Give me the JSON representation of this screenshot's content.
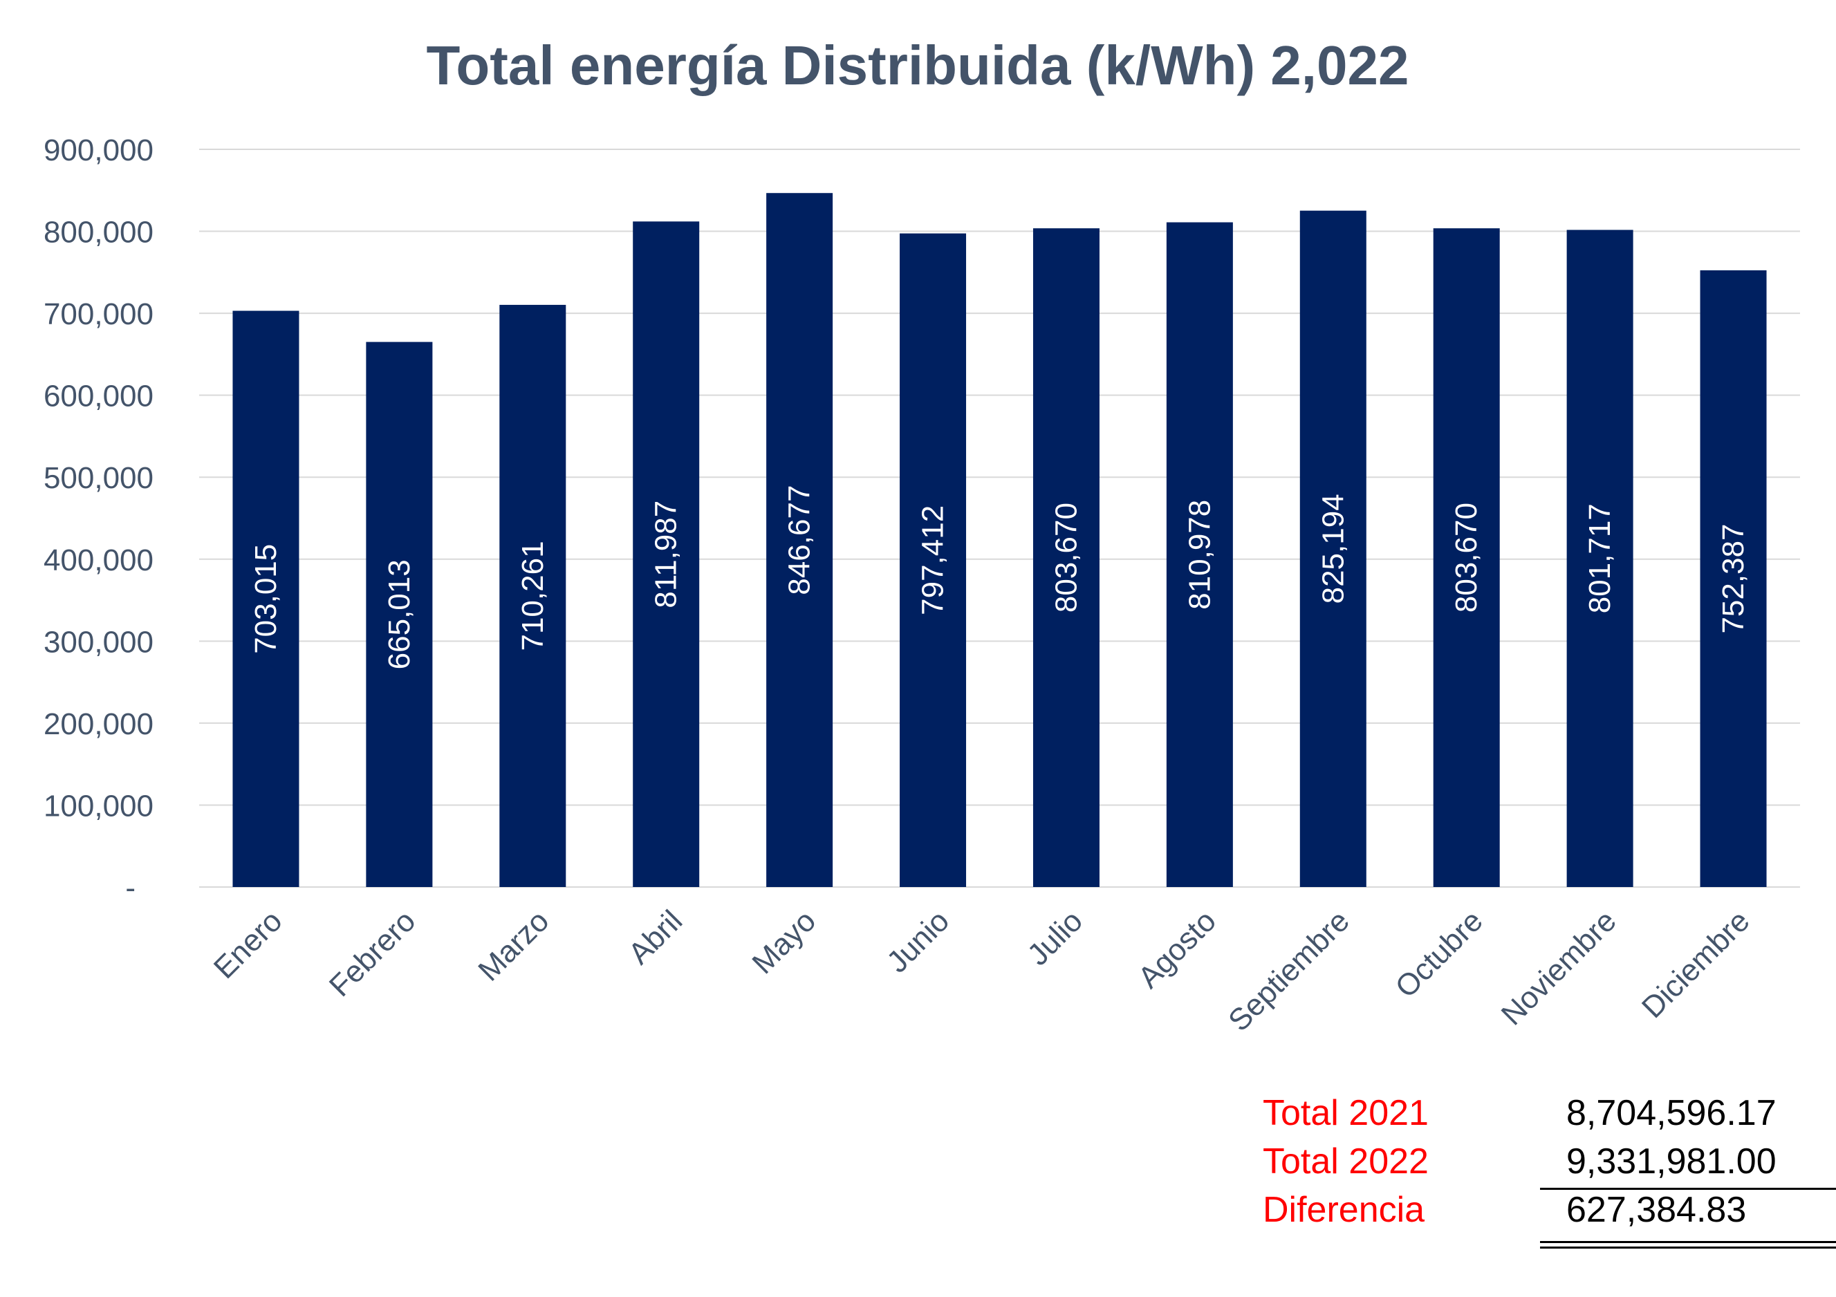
{
  "chart_data": {
    "type": "bar",
    "title": "Total energía Distribuida (k/Wh) 2,022",
    "categories": [
      "Enero",
      "Febrero",
      "Marzo",
      "Abril",
      "Mayo",
      "Junio",
      "Julio",
      "Agosto",
      "Septiembre",
      "Octubre",
      "Noviembre",
      "Diciembre"
    ],
    "values": [
      703015,
      665013,
      710261,
      811987,
      846677,
      797412,
      803670,
      810978,
      825194,
      803670,
      801717,
      752387
    ],
    "value_labels": [
      "703,015",
      "665,013",
      "710,261",
      "811,987",
      "846,677",
      "797,412",
      "803,670",
      "810,978",
      "825,194",
      "803,670",
      "801,717",
      "752,387"
    ],
    "y_ticks": [
      0,
      100000,
      200000,
      300000,
      400000,
      500000,
      600000,
      700000,
      800000,
      900000
    ],
    "y_tick_labels": [
      "-",
      "100,000",
      "200,000",
      "300,000",
      "400,000",
      "500,000",
      "600,000",
      "700,000",
      "800,000",
      "900,000"
    ],
    "ylim": [
      0,
      900000
    ],
    "xlabel": "",
    "ylabel": "",
    "grid": true,
    "legend": "none",
    "bar_color": "#002060"
  },
  "totals": {
    "rows": [
      {
        "label": "Total 2021",
        "value": "8,704,596.17"
      },
      {
        "label": "Total 2022",
        "value": "9,331,981.00"
      },
      {
        "label": "Diferencia",
        "value": "627,384.83"
      }
    ],
    "label_color": "#FF0000"
  },
  "colors": {
    "text": "#44546A",
    "grid": "#D9D9D9"
  }
}
